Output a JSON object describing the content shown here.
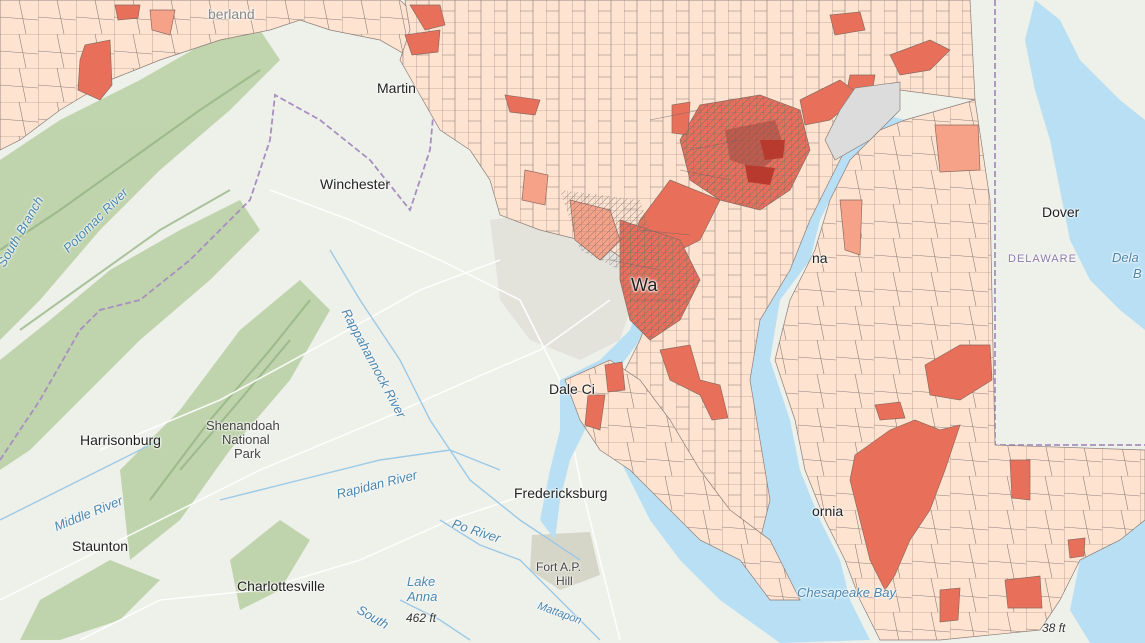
{
  "map": {
    "cities": {
      "martinsburg": "Martin",
      "winchester": "Winchester",
      "harrisonburg": "Harrisonburg",
      "staunton": "Staunton",
      "charlottesville": "Charlottesville",
      "fredericksburg": "Fredericksburg",
      "dale_city": "Dale Ci",
      "washington": "Wa",
      "dover": "Dover",
      "annapolis": "na",
      "california": "ornia",
      "cumberland": "berland"
    },
    "states": {
      "delaware": "DELAWARE"
    },
    "water": {
      "south_branch": "South Branch",
      "potomac_river": "Potomac River",
      "rappahannock_river": "Rappahannock River",
      "rapidan_river": "Rapidan River",
      "middle_river": "Middle River",
      "po_river": "Po River",
      "lake_anna_1": "Lake",
      "lake_anna_2": "Anna",
      "chesapeake_bay": "Chesapeake Bay",
      "delaware_bay_1": "Dela",
      "delaware_bay_2": "B",
      "south": "South",
      "mattaponi": "Mattapon"
    },
    "parks": {
      "shenandoah_1": "Shenandoah",
      "shenandoah_2": "National",
      "shenandoah_3": "Park",
      "fort_ap_hill_1": "Fort A.P.",
      "fort_ap_hill_2": "Hill"
    },
    "elevations": {
      "lake_anna_elev": "462 ft",
      "corner_elev": "38 ft"
    },
    "colors": {
      "basemap": "#eef0ea",
      "mountain": "#b7cfa2",
      "water": "#b8dff4",
      "tract_light": "#fde3d0",
      "tract_mid": "#f6a288",
      "tract_dark": "#e8705a",
      "tract_darkest": "#b8392e",
      "tract_border": "#7a6f6f",
      "state_border": "#a88fc0"
    }
  }
}
